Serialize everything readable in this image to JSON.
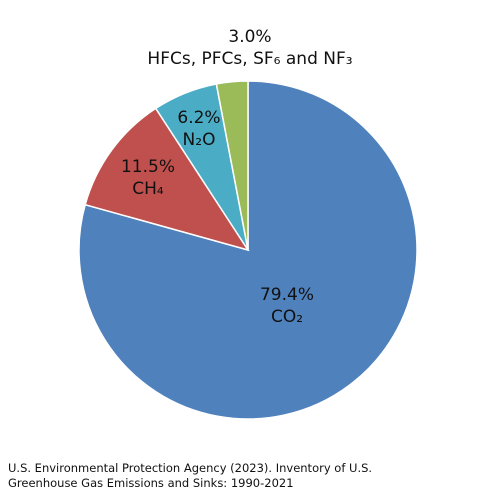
{
  "chart_data": {
    "type": "pie",
    "title": "",
    "slices": [
      {
        "label": "CO₂",
        "value": 79.4,
        "value_label": "79.4%",
        "color": "#4F81BD"
      },
      {
        "label": "CH₄",
        "value": 11.5,
        "value_label": "11.5%",
        "color": "#C0504D"
      },
      {
        "label": "N₂O",
        "value": 6.2,
        "value_label": "6.2%",
        "color": "#4BACC6"
      },
      {
        "label": "HFCs, PFCs, SF₆ and NF₃",
        "value": 3.0,
        "value_label": "3.0%",
        "color": "#9BBB59"
      }
    ]
  },
  "source": {
    "line1": "U.S. Environmental Protection Agency (2023). Inventory of U.S.",
    "line2": "Greenhouse Gas Emissions and Sinks: 1990-2021"
  }
}
